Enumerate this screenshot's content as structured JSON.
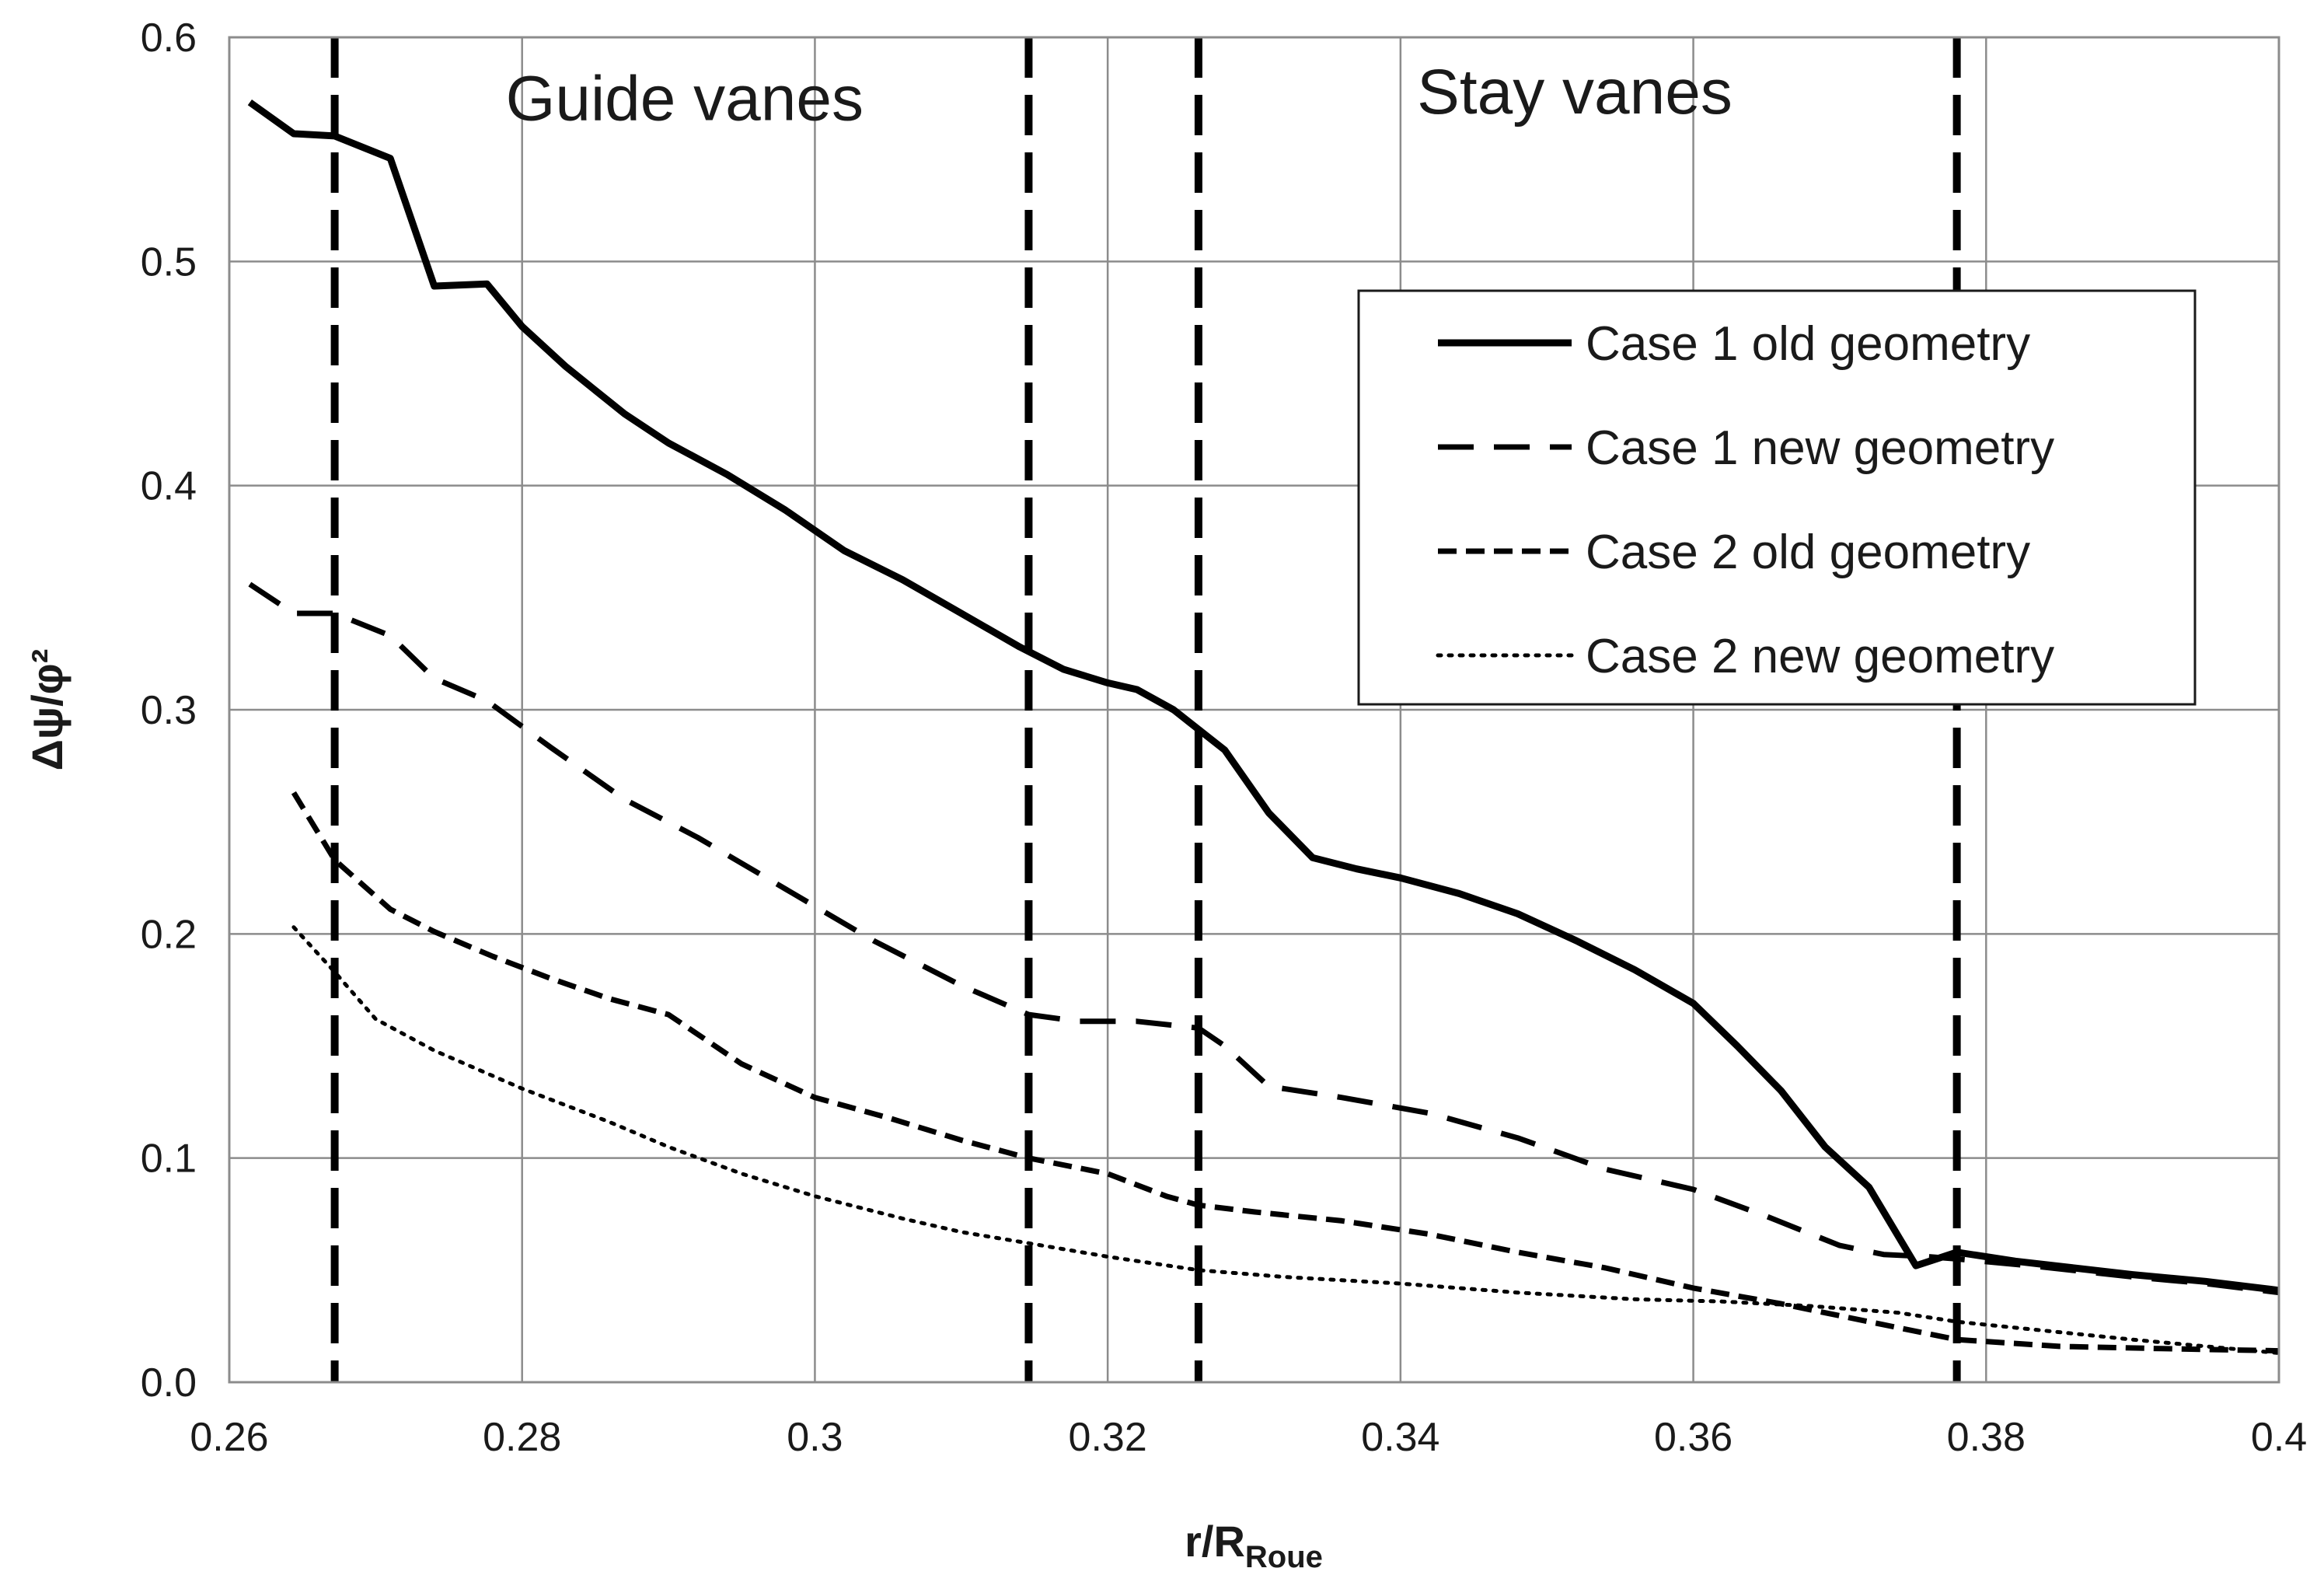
{
  "chart_data": {
    "type": "line",
    "title": "",
    "xlabel": "r/R",
    "xlabel_subscript": "Roue",
    "ylabel": "Δψ/φ²",
    "xlim": [
      0.26,
      0.4
    ],
    "ylim": [
      0.0,
      0.6
    ],
    "x_ticks": [
      0.26,
      0.28,
      0.3,
      0.32,
      0.34,
      0.36,
      0.38,
      0.4
    ],
    "x_tick_labels": [
      "0.26",
      "0.28",
      "0.3",
      "0.32",
      "0.34",
      "0.36",
      "0.38",
      "0.4"
    ],
    "y_ticks": [
      0.0,
      0.1,
      0.2,
      0.3,
      0.4,
      0.5,
      0.6
    ],
    "y_tick_labels": [
      "0.0",
      "0.1",
      "0.2",
      "0.3",
      "0.4",
      "0.5",
      "0.6"
    ],
    "grid": true,
    "legend_position": "right",
    "vertical_markers": [
      0.2672,
      0.3146,
      0.3262,
      0.378
    ],
    "annotations": [
      {
        "text": "Guide vanes",
        "x": 0.2911,
        "y": 0.563
      },
      {
        "text": "Stay vanes",
        "x": 0.3519,
        "y": 0.566
      }
    ],
    "series": [
      {
        "name": "Case 1 old geometry",
        "style": "solid",
        "x": [
          0.2614,
          0.2644,
          0.2672,
          0.271,
          0.274,
          0.2776,
          0.28,
          0.283,
          0.287,
          0.29,
          0.294,
          0.298,
          0.302,
          0.306,
          0.31,
          0.314,
          0.317,
          0.32,
          0.322,
          0.3245,
          0.328,
          0.331,
          0.334,
          0.337,
          0.34,
          0.344,
          0.348,
          0.352,
          0.356,
          0.36,
          0.363,
          0.366,
          0.369,
          0.372,
          0.3752,
          0.378,
          0.382,
          0.386,
          0.39,
          0.395,
          0.4
        ],
        "y": [
          0.571,
          0.557,
          0.556,
          0.546,
          0.489,
          0.49,
          0.471,
          0.453,
          0.432,
          0.419,
          0.405,
          0.389,
          0.371,
          0.358,
          0.343,
          0.328,
          0.318,
          0.312,
          0.309,
          0.3,
          0.282,
          0.254,
          0.234,
          0.229,
          0.225,
          0.218,
          0.209,
          0.197,
          0.184,
          0.169,
          0.15,
          0.13,
          0.105,
          0.087,
          0.052,
          0.058,
          0.054,
          0.051,
          0.048,
          0.045,
          0.041
        ]
      },
      {
        "name": "Case 1 new geometry",
        "style": "long-dash",
        "x": [
          0.2614,
          0.2644,
          0.2672,
          0.271,
          0.274,
          0.2776,
          0.282,
          0.287,
          0.292,
          0.298,
          0.304,
          0.31,
          0.3146,
          0.318,
          0.322,
          0.3262,
          0.328,
          0.331,
          0.336,
          0.342,
          0.348,
          0.354,
          0.36,
          0.365,
          0.37,
          0.373,
          0.376,
          0.378,
          0.383,
          0.39,
          0.395,
          0.4
        ],
        "y": [
          0.356,
          0.343,
          0.343,
          0.333,
          0.314,
          0.304,
          0.283,
          0.26,
          0.243,
          0.22,
          0.197,
          0.177,
          0.164,
          0.161,
          0.161,
          0.158,
          0.15,
          0.132,
          0.127,
          0.12,
          0.109,
          0.095,
          0.086,
          0.074,
          0.061,
          0.057,
          0.056,
          0.055,
          0.052,
          0.047,
          0.044,
          0.04
        ]
      },
      {
        "name": "Case 2 old geometry",
        "style": "short-dash",
        "x": [
          0.2644,
          0.2672,
          0.271,
          0.274,
          0.278,
          0.282,
          0.286,
          0.29,
          0.295,
          0.3,
          0.305,
          0.31,
          0.3146,
          0.32,
          0.324,
          0.3262,
          0.33,
          0.336,
          0.342,
          0.348,
          0.354,
          0.36,
          0.366,
          0.372,
          0.378,
          0.385,
          0.392,
          0.4
        ],
        "y": [
          0.263,
          0.233,
          0.211,
          0.201,
          0.19,
          0.18,
          0.171,
          0.164,
          0.142,
          0.127,
          0.118,
          0.108,
          0.1,
          0.093,
          0.083,
          0.079,
          0.076,
          0.072,
          0.066,
          0.058,
          0.051,
          0.042,
          0.035,
          0.027,
          0.019,
          0.016,
          0.015,
          0.014
        ]
      },
      {
        "name": "Case 2 new geometry",
        "style": "dotted",
        "x": [
          0.2644,
          0.2672,
          0.27,
          0.274,
          0.28,
          0.286,
          0.29,
          0.295,
          0.3,
          0.306,
          0.31,
          0.3146,
          0.32,
          0.3262,
          0.332,
          0.34,
          0.348,
          0.356,
          0.362,
          0.368,
          0.374,
          0.378,
          0.384,
          0.39,
          0.395,
          0.4
        ],
        "y": [
          0.203,
          0.183,
          0.162,
          0.148,
          0.131,
          0.116,
          0.105,
          0.093,
          0.083,
          0.073,
          0.067,
          0.062,
          0.056,
          0.05,
          0.047,
          0.044,
          0.04,
          0.037,
          0.036,
          0.034,
          0.031,
          0.027,
          0.023,
          0.019,
          0.016,
          0.013
        ]
      }
    ]
  },
  "colors": {
    "line": "#000000",
    "grid": "#8c8c8c",
    "background": "#ffffff"
  }
}
